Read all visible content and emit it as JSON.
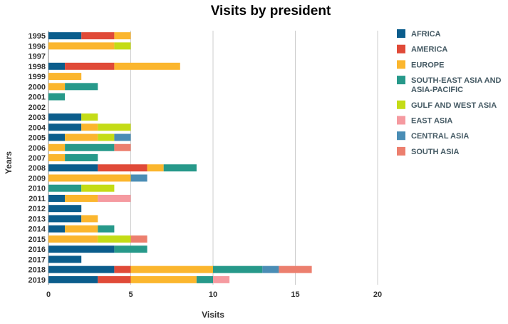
{
  "chart_data": {
    "type": "bar",
    "orientation": "horizontal",
    "stacked": true,
    "title": "Visits by president",
    "xlabel": "Visits",
    "ylabel": "Years",
    "xlim": [
      0,
      20
    ],
    "xticks": [
      "0",
      "5",
      "10",
      "15",
      "20"
    ],
    "grid": "vertical",
    "legend_position": "right",
    "categories": [
      "1995",
      "1996",
      "1997",
      "1998",
      "1999",
      "2000",
      "2001",
      "2002",
      "2003",
      "2004",
      "2005",
      "2006",
      "2007",
      "2008",
      "2009",
      "2010",
      "2011",
      "2012",
      "2013",
      "2014",
      "2015",
      "2016",
      "2017",
      "2018",
      "2019"
    ],
    "series": [
      {
        "name": "AFRICA",
        "color": "#0b5d8c",
        "values": [
          2,
          0,
          0,
          1,
          0,
          0,
          0,
          0,
          2,
          2,
          1,
          0,
          0,
          3,
          0,
          0,
          1,
          2,
          2,
          1,
          0,
          4,
          2,
          4,
          3
        ]
      },
      {
        "name": "AMERICA",
        "color": "#e04a38",
        "values": [
          2,
          0,
          0,
          3,
          0,
          0,
          0,
          0,
          0,
          0,
          0,
          0,
          0,
          3,
          0,
          0,
          0,
          0,
          0,
          0,
          0,
          0,
          0,
          1,
          2
        ]
      },
      {
        "name": "EUROPE",
        "color": "#fbb62e",
        "values": [
          1,
          4,
          0,
          4,
          2,
          1,
          0,
          0,
          0,
          1,
          2,
          1,
          1,
          1,
          5,
          0,
          2,
          0,
          1,
          2,
          3,
          0,
          0,
          5,
          4
        ]
      },
      {
        "name": "SOUTH-EAST ASIA AND ASIA-PACIFIC",
        "color": "#27998a",
        "values": [
          0,
          0,
          0,
          0,
          0,
          2,
          1,
          0,
          0,
          0,
          0,
          3,
          2,
          2,
          0,
          2,
          0,
          0,
          0,
          1,
          0,
          2,
          0,
          3,
          1
        ]
      },
      {
        "name": "GULF AND WEST ASIA",
        "color": "#c4dc16",
        "values": [
          0,
          1,
          0,
          0,
          0,
          0,
          0,
          0,
          1,
          2,
          1,
          0,
          0,
          0,
          0,
          2,
          0,
          0,
          0,
          0,
          2,
          0,
          0,
          0,
          0
        ]
      },
      {
        "name": "EAST ASIA",
        "color": "#f59aa0",
        "values": [
          0,
          0,
          0,
          0,
          0,
          0,
          0,
          0,
          0,
          0,
          0,
          0,
          0,
          0,
          0,
          0,
          2,
          0,
          0,
          0,
          0,
          0,
          0,
          0,
          1
        ]
      },
      {
        "name": "CENTRAL ASIA",
        "color": "#4a8db5",
        "values": [
          0,
          0,
          0,
          0,
          0,
          0,
          0,
          0,
          0,
          0,
          1,
          0,
          0,
          0,
          1,
          0,
          0,
          0,
          0,
          0,
          0,
          0,
          0,
          1,
          0
        ]
      },
      {
        "name": "SOUTH ASIA",
        "color": "#ec7f6e",
        "values": [
          0,
          0,
          0,
          0,
          0,
          0,
          0,
          0,
          0,
          0,
          0,
          1,
          0,
          0,
          0,
          0,
          0,
          0,
          0,
          0,
          1,
          0,
          0,
          2,
          0
        ]
      }
    ],
    "legend": [
      [
        "AFRICA"
      ],
      [
        "AMERICA"
      ],
      [
        "EUROPE"
      ],
      [
        "SOUTH-EAST ASIA AND",
        "ASIA-PACIFIC"
      ],
      [
        "GULF AND WEST ASIA"
      ],
      [
        "EAST ASIA"
      ],
      [
        "CENTRAL ASIA"
      ],
      [
        "SOUTH ASIA"
      ]
    ]
  }
}
